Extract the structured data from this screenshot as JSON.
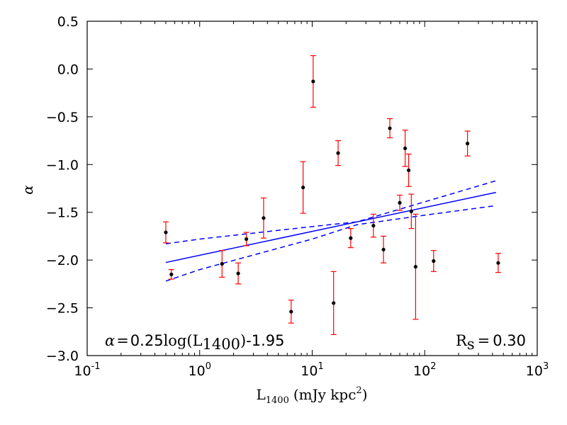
{
  "chart_data": {
    "type": "scatter",
    "title": "",
    "xlabel": "L1400 (mJy kpc2)",
    "xlabel_parts": {
      "main": "L",
      "sub": "1400",
      "unit_prefix": "(mJy kpc",
      "unit_sup": "2",
      "unit_suffix": ")"
    },
    "ylabel": "α",
    "x_scale": "log",
    "xlim": [
      0.1,
      1000
    ],
    "ylim": [
      -3.0,
      0.5
    ],
    "y_ticks": [
      0.5,
      0.0,
      -0.5,
      -1.0,
      -1.5,
      -2.0,
      -2.5,
      -3.0
    ],
    "y_tick_labels": [
      "0.5",
      "0.0",
      "−0.5",
      "−1.0",
      "−1.5",
      "−2.0",
      "−2.5",
      "−3.0"
    ],
    "x_ticks": [
      {
        "value": 0.1,
        "base": "10",
        "exp": "-1"
      },
      {
        "value": 1,
        "base": "10",
        "exp": "0"
      },
      {
        "value": 10,
        "base": "10",
        "exp": "1"
      },
      {
        "value": 100,
        "base": "10",
        "exp": "2"
      },
      {
        "value": 1000,
        "base": "10",
        "exp": "3"
      }
    ],
    "grid": false,
    "points": [
      {
        "x": 0.5,
        "y": -1.71,
        "err": 0.11
      },
      {
        "x": 0.56,
        "y": -2.15,
        "err": 0.05
      },
      {
        "x": 1.58,
        "y": -2.04,
        "err": 0.14
      },
      {
        "x": 2.2,
        "y": -2.14,
        "err": 0.11
      },
      {
        "x": 2.6,
        "y": -1.78,
        "err": 0.07
      },
      {
        "x": 3.7,
        "y": -1.56,
        "err": 0.21
      },
      {
        "x": 6.5,
        "y": -2.54,
        "err": 0.12
      },
      {
        "x": 8.3,
        "y": -1.24,
        "err": 0.27
      },
      {
        "x": 10.2,
        "y": -0.13,
        "err": 0.27
      },
      {
        "x": 15.5,
        "y": -2.45,
        "err": 0.33
      },
      {
        "x": 17.0,
        "y": -0.88,
        "err": 0.13
      },
      {
        "x": 22.0,
        "y": -1.77,
        "err": 0.1
      },
      {
        "x": 35.0,
        "y": -1.64,
        "err": 0.12
      },
      {
        "x": 43.0,
        "y": -1.89,
        "err": 0.14
      },
      {
        "x": 49.0,
        "y": -0.62,
        "err": 0.1
      },
      {
        "x": 60.0,
        "y": -1.4,
        "err": 0.08
      },
      {
        "x": 67.0,
        "y": -0.83,
        "err": 0.19
      },
      {
        "x": 72.0,
        "y": -1.06,
        "err": 0.17
      },
      {
        "x": 76.0,
        "y": -1.49,
        "err": 0.18
      },
      {
        "x": 83.0,
        "y": -2.07,
        "err": 0.55
      },
      {
        "x": 120.0,
        "y": -2.01,
        "err": 0.11
      },
      {
        "x": 240.0,
        "y": -0.78,
        "err": 0.13
      },
      {
        "x": 450.0,
        "y": -2.03,
        "err": 0.1
      }
    ],
    "fit": {
      "slope": 0.25,
      "intercept": -1.95,
      "x_range": [
        0.5,
        430
      ],
      "upper_bound": [
        [
          0.5,
          -1.83
        ],
        [
          1,
          -1.78
        ],
        [
          10,
          -1.65
        ],
        [
          25,
          -1.6
        ],
        [
          100,
          -1.39
        ],
        [
          430,
          -1.17
        ]
      ],
      "lower_bound": [
        [
          0.5,
          -2.22
        ],
        [
          1,
          -2.1
        ],
        [
          10,
          -1.78
        ],
        [
          25,
          -1.63
        ],
        [
          100,
          -1.53
        ],
        [
          430,
          -1.43
        ]
      ]
    },
    "annotations": {
      "fit_label": {
        "alpha": "α",
        "eq": "=",
        "slope": "0.25",
        "log": "log",
        "open": "(L",
        "sub": "1400",
        "close": ")",
        "intercept": "-1.95"
      },
      "rs_label": {
        "r": "R",
        "sub": "s",
        "eq": "=",
        "value": "0.30"
      }
    },
    "colors": {
      "points": "#000000",
      "errorbars": "#ff0000",
      "fit": "#0000ff",
      "axes": "#000000"
    }
  }
}
